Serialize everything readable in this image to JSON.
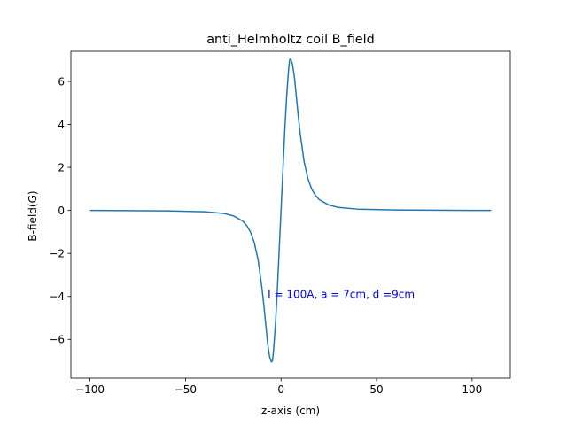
{
  "chart_data": {
    "type": "line",
    "title": "anti_Helmholtz coil B_field",
    "xlabel": "z-axis (cm)",
    "ylabel": "B-field(G)",
    "xlim": [
      -110,
      120
    ],
    "ylim": [
      -7.8,
      7.4
    ],
    "xticks": [
      -100,
      -50,
      0,
      50,
      100
    ],
    "xtick_labels": [
      "−100",
      "−50",
      "0",
      "50",
      "100"
    ],
    "yticks": [
      -6,
      -4,
      -2,
      0,
      2,
      4,
      6
    ],
    "ytick_labels": [
      "−6",
      "−4",
      "−2",
      "0",
      "2",
      "4",
      "6"
    ],
    "grid": false,
    "series": [
      {
        "color": "#1f77b4",
        "x": [
          -100,
          -80,
          -60,
          -40,
          -30,
          -25,
          -20,
          -18,
          -16,
          -14,
          -12,
          -10,
          -9,
          -8,
          -7,
          -6,
          -5,
          -4.5,
          -4,
          -3,
          -2,
          -1,
          0,
          1,
          2,
          3,
          4,
          4.5,
          5,
          6,
          7,
          8,
          9,
          10,
          12,
          14,
          16,
          18,
          20,
          25,
          30,
          40,
          60,
          80,
          100,
          110
        ],
        "values": [
          0,
          -0.01,
          -0.02,
          -0.06,
          -0.14,
          -0.25,
          -0.5,
          -0.7,
          -1.0,
          -1.5,
          -2.3,
          -3.6,
          -4.4,
          -5.3,
          -6.2,
          -6.8,
          -7.05,
          -7.0,
          -6.6,
          -5.4,
          -3.8,
          -1.9,
          0,
          1.9,
          3.8,
          5.4,
          6.6,
          7.0,
          7.05,
          6.8,
          6.2,
          5.3,
          4.4,
          3.6,
          2.3,
          1.5,
          1.0,
          0.7,
          0.5,
          0.25,
          0.14,
          0.06,
          0.02,
          0.01,
          0,
          0
        ]
      }
    ],
    "annotation": {
      "text": "I = 100A, a = 7cm, d =9cm",
      "x": -7,
      "y": -3.9,
      "color": "#0000ff"
    }
  }
}
